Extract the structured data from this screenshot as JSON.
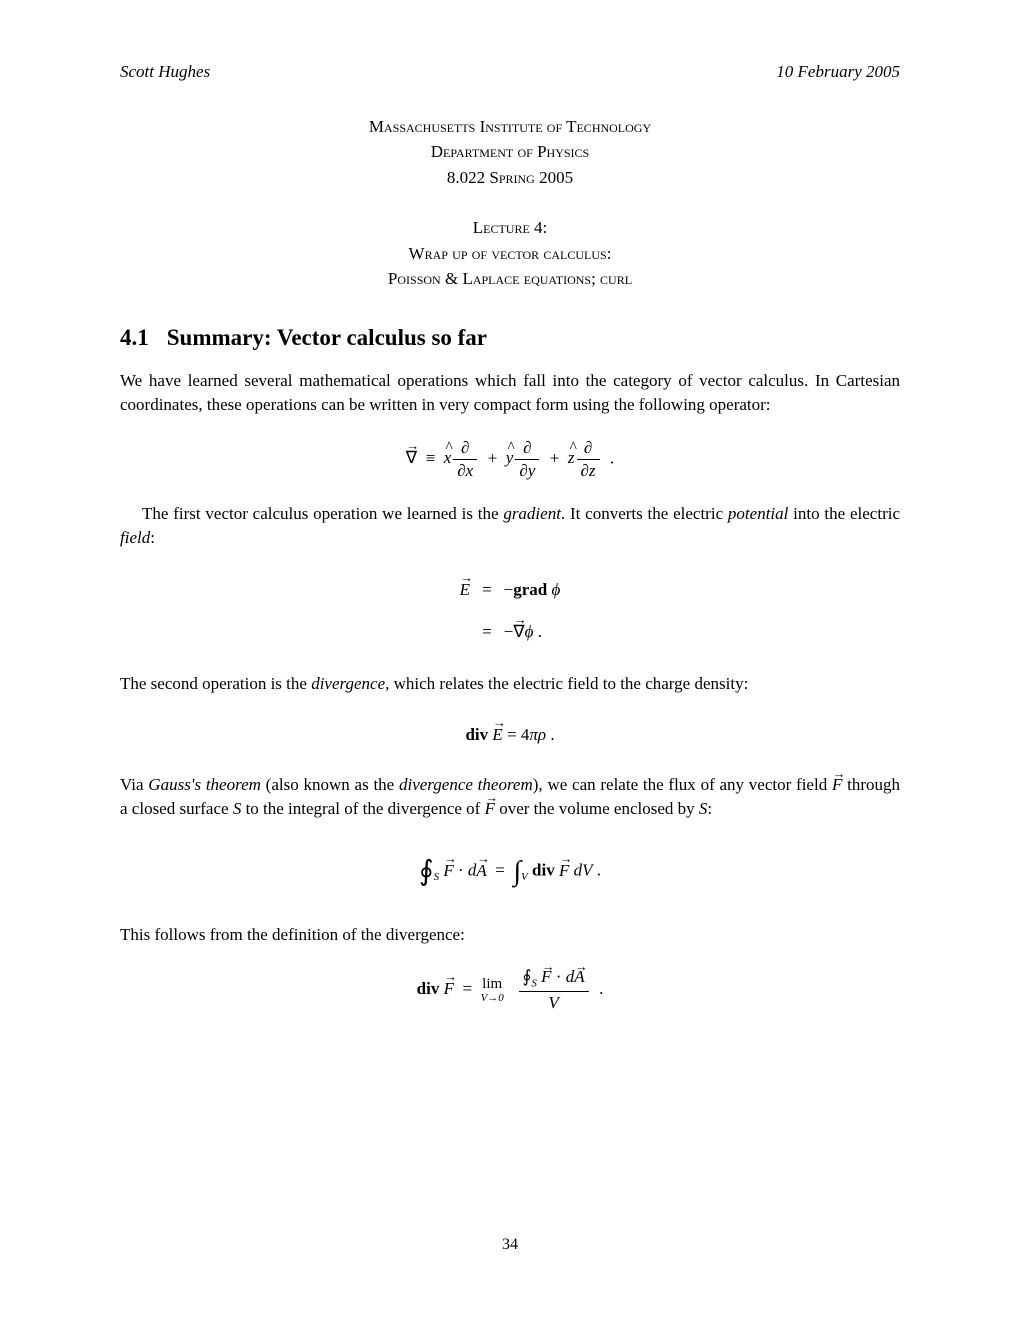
{
  "header": {
    "author": "Scott Hughes",
    "date": "10 February 2005"
  },
  "institution": {
    "line1": "Massachusetts Institute of Technology",
    "line2": "Department of Physics",
    "line3": "8.022 Spring 2005"
  },
  "lecture": {
    "line1": "Lecture 4:",
    "line2": "Wrap up of vector calculus:",
    "line3": "Poisson & Laplace equations; curl"
  },
  "section": {
    "number": "4.1",
    "title": "Summary: Vector calculus so far"
  },
  "paragraphs": {
    "p1": "We have learned several mathematical operations which fall into the category of vector calculus. In Cartesian coordinates, these operations can be written in very compact form using the following operator:",
    "p2a": "The first vector calculus operation we learned is the ",
    "p2b": "gradient",
    "p2c": ". It converts the electric ",
    "p2d": "potential",
    "p2e": " into the electric ",
    "p2f": "field",
    "p2g": ":",
    "p3a": "The second operation is the ",
    "p3b": "divergence",
    "p3c": ", which relates the electric field to the charge density:",
    "p4a": "Via ",
    "p4b": "Gauss's theorem",
    "p4c": " (also known as the ",
    "p4d": "divergence theorem",
    "p4e": "), we can relate the flux of any vector field ",
    "p4f": " through a closed surface ",
    "p4g": " to the integral of the divergence of ",
    "p4h": " over the volume enclosed by ",
    "p4i": ":",
    "p5": "This follows from the definition of the divergence:"
  },
  "symbols": {
    "F": "F",
    "S": "S",
    "E": "E",
    "nabla": "∇",
    "equiv": "≡",
    "partial": "∂",
    "phi": "ϕ",
    "rho": "ρ",
    "pi": "π",
    "dot": "·",
    "grad": "grad",
    "div": "div",
    "lim": "lim",
    "Vto0": "V→0"
  },
  "page_number": "34"
}
